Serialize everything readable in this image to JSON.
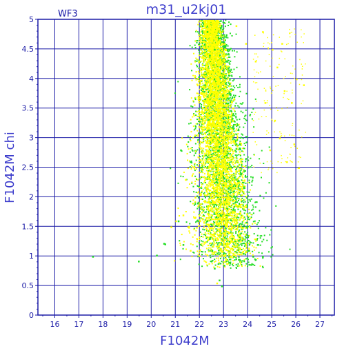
{
  "chart_data": {
    "type": "scatter",
    "title": "m31_u2kj01",
    "corner_label": "WF3",
    "xlabel": "F1042M",
    "ylabel": "F1042M chi",
    "xlim": [
      15.3,
      27.6
    ],
    "ylim": [
      0,
      5
    ],
    "xticks": [
      16,
      17,
      18,
      19,
      20,
      21,
      22,
      23,
      24,
      25,
      26,
      27
    ],
    "yticks": [
      0,
      0.5,
      1,
      1.5,
      2,
      2.5,
      3,
      3.5,
      4,
      4.5,
      5
    ],
    "ytick_labels": [
      "0",
      "0.5",
      "1",
      "1.5",
      "2",
      "2.5",
      "3",
      "3.5",
      "4",
      "4.5",
      "5"
    ],
    "grid": true,
    "colors": {
      "axis": "#1a1aa6",
      "title": "#3d3dcc",
      "green": "#22dd22",
      "yellow": "#ffff00"
    },
    "series": [
      {
        "color": "green",
        "points": [
          [
            17.55,
            1.0
          ],
          [
            19.45,
            0.92
          ],
          [
            20.5,
            1.22
          ],
          [
            20.55,
            1.21
          ],
          [
            20.2,
            1.02
          ],
          [
            21.1,
            1.6
          ],
          [
            21.3,
            1.2
          ],
          [
            21.9,
            1.9
          ],
          [
            21.6,
            2.6
          ],
          [
            21.2,
            2.8
          ],
          [
            22.3,
            1.6
          ],
          [
            22.4,
            1.3
          ],
          [
            22.5,
            1.1
          ],
          [
            22.6,
            0.8
          ],
          [
            22.8,
            0.6
          ],
          [
            22.9,
            0.5
          ],
          [
            23.0,
            0.85
          ],
          [
            23.2,
            0.9
          ],
          [
            23.4,
            1.0
          ],
          [
            23.6,
            0.95
          ],
          [
            23.8,
            1.05
          ],
          [
            24.0,
            1.1
          ],
          [
            24.2,
            1.0
          ],
          [
            24.4,
            1.2
          ],
          [
            24.6,
            1.0
          ],
          [
            22.3,
            4.8
          ],
          [
            22.4,
            4.4
          ],
          [
            22.1,
            4.9
          ],
          [
            22.6,
            4.5
          ],
          [
            22.2,
            3.9
          ]
        ]
      },
      {
        "color": "yellow",
        "points": [
          [
            22.3,
            4.95
          ],
          [
            22.7,
            4.85
          ],
          [
            23.5,
            4.9
          ],
          [
            24.6,
            4.8
          ],
          [
            25.2,
            4.2
          ],
          [
            25.5,
            3.8
          ],
          [
            25.8,
            3.6
          ],
          [
            26.0,
            4.0
          ],
          [
            26.3,
            3.9
          ],
          [
            25.1,
            3.3
          ],
          [
            25.3,
            3.0
          ],
          [
            24.9,
            2.8
          ],
          [
            25.6,
            2.6
          ],
          [
            26.1,
            2.5
          ],
          [
            25.9,
            2.9
          ],
          [
            24.7,
            3.6
          ],
          [
            25.0,
            4.5
          ],
          [
            25.4,
            4.6
          ],
          [
            23.9,
            4.6
          ],
          [
            24.3,
            4.3
          ],
          [
            21.3,
            1.7
          ],
          [
            21.5,
            1.5
          ],
          [
            21.7,
            1.9
          ],
          [
            21.0,
            1.6
          ],
          [
            20.8,
            1.5
          ],
          [
            21.4,
            2.3
          ],
          [
            21.8,
            2.0
          ],
          [
            22.0,
            1.6
          ],
          [
            21.6,
            1.1
          ],
          [
            22.7,
            0.55
          ]
        ]
      }
    ],
    "density": {
      "note": "Dense stellar locus rendered as colored cloud",
      "core_color": "yellow",
      "edge_color": "green"
    }
  }
}
